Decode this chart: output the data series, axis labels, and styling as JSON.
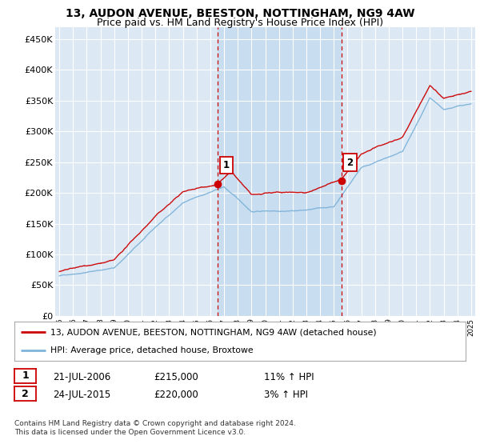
{
  "title": "13, AUDON AVENUE, BEESTON, NOTTINGHAM, NG9 4AW",
  "subtitle": "Price paid vs. HM Land Registry's House Price Index (HPI)",
  "ylabel_ticks": [
    "£0",
    "£50K",
    "£100K",
    "£150K",
    "£200K",
    "£250K",
    "£300K",
    "£350K",
    "£400K",
    "£450K"
  ],
  "ytick_values": [
    0,
    50000,
    100000,
    150000,
    200000,
    250000,
    300000,
    350000,
    400000,
    450000
  ],
  "ylim": [
    0,
    470000
  ],
  "xlim_left": 1994.7,
  "xlim_right": 2025.3,
  "background_color": "#ffffff",
  "plot_bg_color": "#dce9f5",
  "highlight_color": "#c8ddf0",
  "grid_color": "#ffffff",
  "red_line_color": "#cc0000",
  "blue_line_color": "#7fb3d9",
  "marker1_x": 2006.55,
  "marker1_y": 215000,
  "marker2_x": 2015.55,
  "marker2_y": 220000,
  "vline_color": "#cc0000",
  "legend_label_red": "13, AUDON AVENUE, BEESTON, NOTTINGHAM, NG9 4AW (detached house)",
  "legend_label_blue": "HPI: Average price, detached house, Broxtowe",
  "annotation1_num": "1",
  "annotation2_num": "2",
  "table_row1": [
    "1",
    "21-JUL-2006",
    "£215,000",
    "11% ↑ HPI"
  ],
  "table_row2": [
    "2",
    "24-JUL-2015",
    "£220,000",
    "3% ↑ HPI"
  ],
  "footer": "Contains HM Land Registry data © Crown copyright and database right 2024.\nThis data is licensed under the Open Government Licence v3.0.",
  "title_fontsize": 10,
  "subtitle_fontsize": 9,
  "tick_fontsize": 8
}
